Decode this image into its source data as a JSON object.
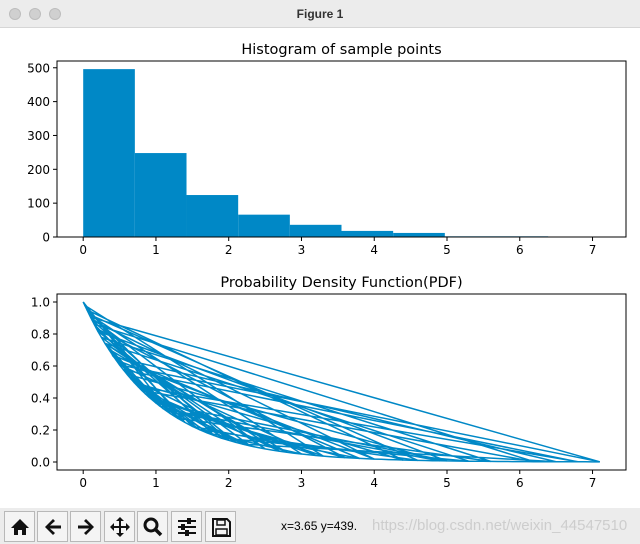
{
  "window": {
    "title": "Figure 1"
  },
  "toolbar": {
    "buttons": [
      "home",
      "back",
      "forward",
      "pan",
      "zoom",
      "configure",
      "save"
    ],
    "status": "x=3.65 y=439.",
    "watermark": "https://blog.csdn.net/weixin_44547510"
  },
  "colors": {
    "series": "#0088c6"
  },
  "chart_data": [
    {
      "type": "bar",
      "title": "Histogram of sample points",
      "bin_edges": [
        0,
        0.71,
        1.42,
        2.13,
        2.84,
        3.55,
        4.26,
        4.97,
        5.68,
        6.39,
        7.1
      ],
      "values": [
        496,
        248,
        124,
        66,
        36,
        18,
        12,
        2,
        2,
        1
      ],
      "xlim": [
        -0.36,
        7.46
      ],
      "ylim": [
        0,
        520
      ],
      "xticks": [
        "0",
        "1",
        "2",
        "3",
        "4",
        "5",
        "6",
        "7"
      ],
      "yticks": [
        "0",
        "100",
        "200",
        "300",
        "400",
        "500"
      ]
    },
    {
      "type": "line",
      "title": "Probability Density Function(PDF)",
      "x": [
        0.0,
        1.2,
        0.3,
        2.5,
        0.1,
        7.1,
        0.5,
        3.2,
        0.9,
        1.8,
        0.05,
        4.4,
        0.7,
        2.1,
        0.2,
        5.0,
        1.0,
        0.4,
        3.8,
        1.5,
        0.15,
        6.2,
        0.8,
        2.8,
        0.35,
        1.1,
        4.9,
        0.6,
        1.4,
        0.02,
        3.3,
        0.9,
        2.3,
        0.25,
        5.6,
        1.3,
        0.45,
        4.0,
        0.12,
        2.0,
        0.75,
        6.8,
        0.55,
        1.7,
        3.0,
        0.08,
        4.6,
        1.6,
        0.65,
        2.7,
        0.3,
        5.3,
        1.9,
        0.18,
        3.6,
        1.05,
        0.42,
        6.5,
        2.2,
        0.85
      ],
      "y": [
        1.0,
        0.301,
        0.741,
        0.082,
        0.905,
        0.001,
        0.607,
        0.041,
        0.407,
        0.165,
        0.951,
        0.012,
        0.497,
        0.122,
        0.819,
        0.007,
        0.368,
        0.67,
        0.022,
        0.223,
        0.861,
        0.002,
        0.449,
        0.061,
        0.705,
        0.333,
        0.007,
        0.549,
        0.247,
        0.98,
        0.037,
        0.407,
        0.1,
        0.779,
        0.004,
        0.273,
        0.638,
        0.018,
        0.887,
        0.135,
        0.472,
        0.001,
        0.577,
        0.183,
        0.05,
        0.923,
        0.01,
        0.202,
        0.522,
        0.067,
        0.741,
        0.005,
        0.15,
        0.835,
        0.027,
        0.35,
        0.657,
        0.002,
        0.111,
        0.427
      ],
      "xlim": [
        -0.36,
        7.46
      ],
      "ylim": [
        -0.05,
        1.05
      ],
      "xticks": [
        "0",
        "1",
        "2",
        "3",
        "4",
        "5",
        "6",
        "7"
      ],
      "yticks": [
        "0.0",
        "0.2",
        "0.4",
        "0.6",
        "0.8",
        "1.0"
      ]
    }
  ]
}
